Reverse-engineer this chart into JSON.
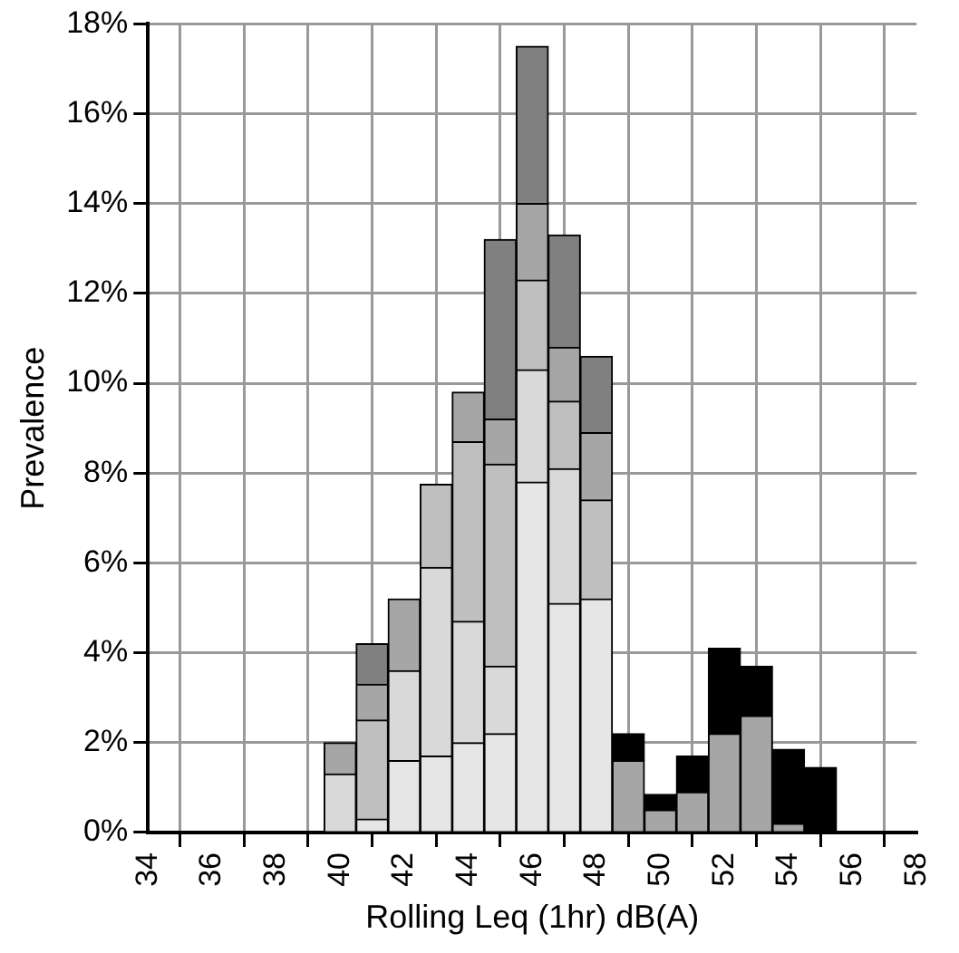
{
  "chart_data": {
    "type": "bar",
    "xlabel": "Rolling Leq (1hr) dB(A)",
    "ylabel": "Prevalence",
    "stacked": true,
    "grid": true,
    "legend": false,
    "x": [
      40,
      41,
      42,
      43,
      44,
      45,
      46,
      47,
      48,
      49,
      50,
      51,
      52,
      53,
      54,
      55
    ],
    "series": [
      {
        "color": "#e6e6e6",
        "values": [
          null,
          0.3,
          1.6,
          1.7,
          2.0,
          2.2,
          7.8,
          5.1,
          5.2,
          null,
          null,
          null,
          null,
          null,
          null,
          null
        ]
      },
      {
        "color": "#d9d9d9",
        "values": [
          1.3,
          null,
          2.0,
          4.2,
          2.7,
          1.5,
          2.5,
          3.0,
          null,
          null,
          null,
          null,
          null,
          null,
          null,
          null
        ]
      },
      {
        "color": "#bfbfbf",
        "values": [
          null,
          2.2,
          null,
          1.85,
          4.0,
          4.5,
          2.0,
          1.5,
          2.2,
          null,
          null,
          null,
          null,
          null,
          null,
          null
        ]
      },
      {
        "color": "#a6a6a6",
        "values": [
          0.7,
          0.8,
          1.6,
          null,
          1.1,
          1.0,
          1.7,
          1.2,
          1.5,
          1.6,
          0.5,
          0.9,
          2.2,
          2.6,
          0.2,
          null
        ]
      },
      {
        "color": "#808080",
        "values": [
          null,
          0.9,
          null,
          null,
          null,
          4.0,
          3.5,
          2.5,
          1.7,
          null,
          null,
          null,
          null,
          null,
          null,
          null
        ]
      },
      {
        "color": "#000000",
        "values": [
          null,
          null,
          null,
          null,
          null,
          null,
          null,
          null,
          null,
          0.6,
          0.35,
          0.8,
          1.9,
          1.1,
          1.65,
          1.45
        ]
      }
    ],
    "xlim": [
      34,
      58
    ],
    "xticks": [
      34,
      36,
      38,
      40,
      42,
      44,
      46,
      48,
      50,
      52,
      54,
      56,
      58
    ],
    "ylim": [
      0,
      18
    ],
    "yticks": [
      {
        "value": 0,
        "label": "0%"
      },
      {
        "value": 2,
        "label": "2%"
      },
      {
        "value": 4,
        "label": "4%"
      },
      {
        "value": 6,
        "label": "6%"
      },
      {
        "value": 8,
        "label": "8%"
      },
      {
        "value": 10,
        "label": "10%"
      },
      {
        "value": 12,
        "label": "12%"
      },
      {
        "value": 14,
        "label": "14%"
      },
      {
        "value": 16,
        "label": "16%"
      },
      {
        "value": 18,
        "label": "18%"
      }
    ]
  }
}
